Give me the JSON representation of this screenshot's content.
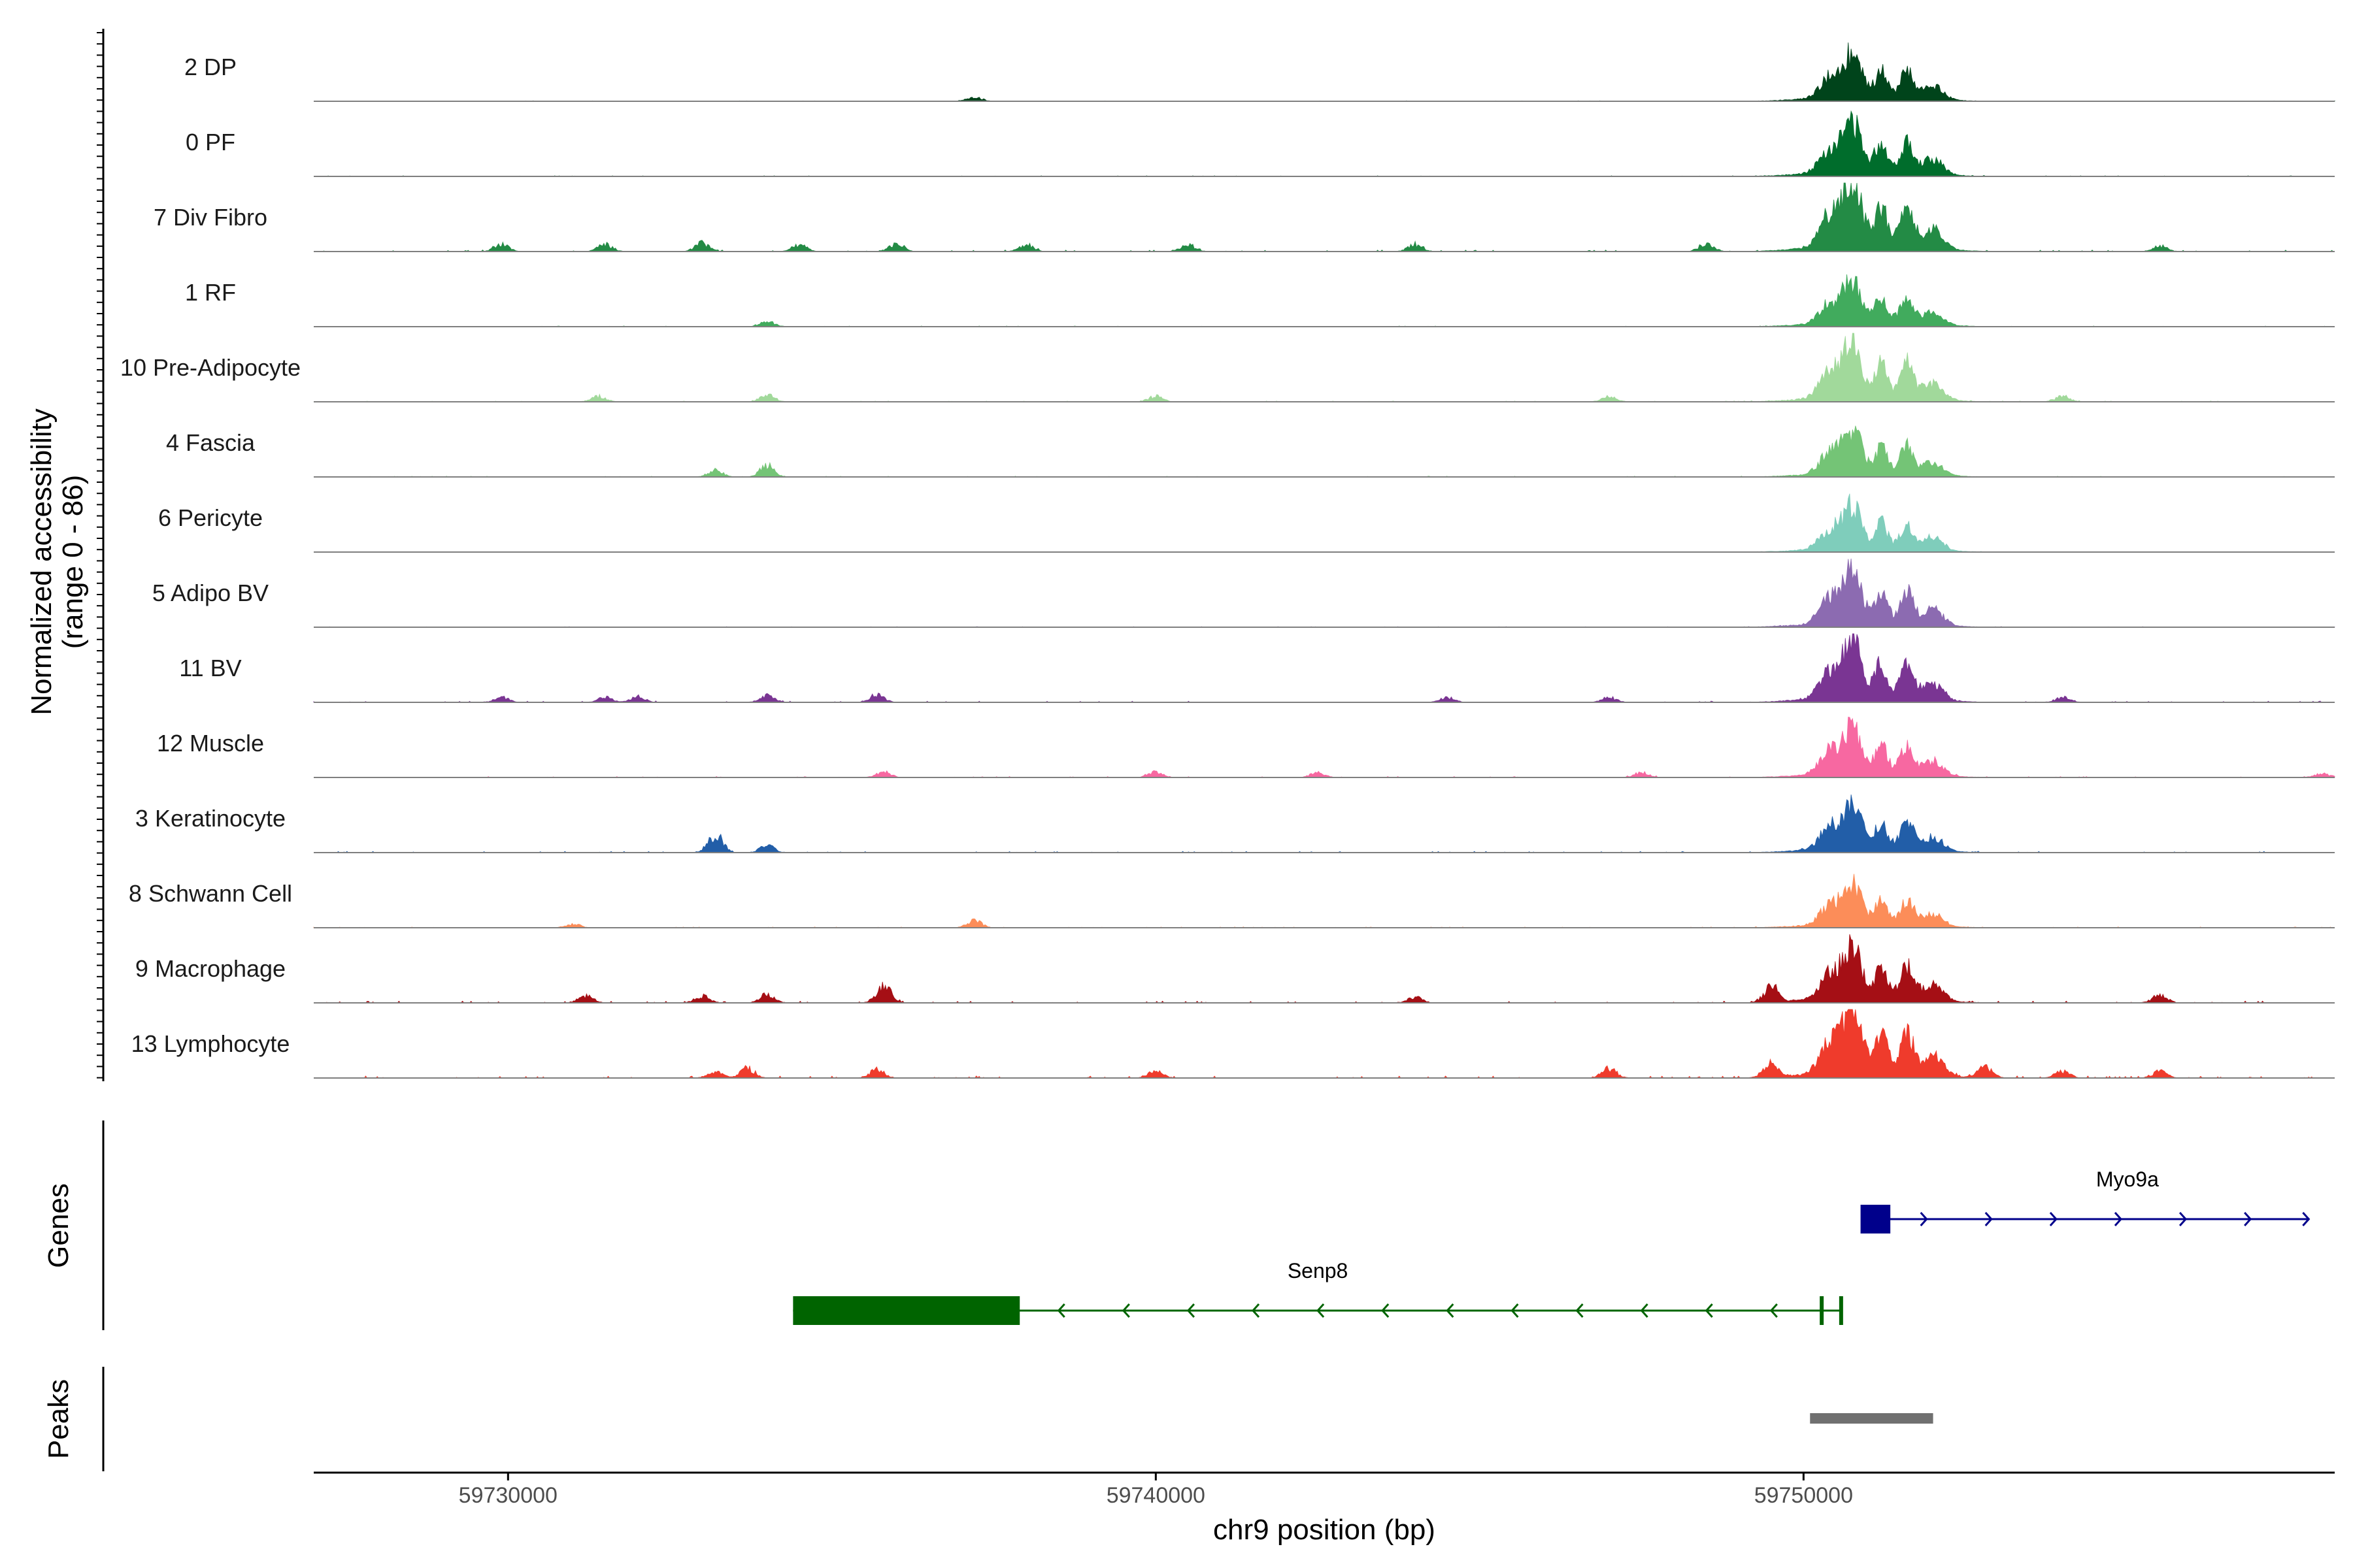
{
  "chart_data": {
    "type": "coverage",
    "xlabel": "chr9 position (bp)",
    "ylabel_line1": "Normalized accessibility",
    "ylabel_line2": "(range 0 - 86)",
    "y_range": [
      0,
      86
    ],
    "xlim": [
      59727000,
      59758200
    ],
    "x_ticks": [
      59730000,
      59740000,
      59750000
    ],
    "x_tick_labels": [
      "59730000",
      "59740000",
      "59750000"
    ],
    "peak_center": 59751000,
    "tracks": [
      {
        "label": "2 DP",
        "color": "#00441b",
        "peak_height": 0.62,
        "bg_level": 0.05,
        "bg_peaks": [
          [
            59737200,
            0.06
          ]
        ],
        "seed": 11
      },
      {
        "label": "0 PF",
        "color": "#006d2c",
        "peak_height": 0.72,
        "bg_level": 0.07,
        "bg_peaks": [],
        "seed": 23
      },
      {
        "label": "7 Div Fibro",
        "color": "#238b45",
        "peak_height": 0.95,
        "bg_level": 0.15,
        "bg_peaks": [
          [
            59729900,
            0.1
          ],
          [
            59731500,
            0.1
          ],
          [
            59733000,
            0.12
          ],
          [
            59734500,
            0.1
          ],
          [
            59736000,
            0.12
          ],
          [
            59738000,
            0.1
          ],
          [
            59740500,
            0.1
          ],
          [
            59744000,
            0.1
          ],
          [
            59748500,
            0.12
          ],
          [
            59755500,
            0.08
          ]
        ],
        "seed": 37
      },
      {
        "label": "1 RF",
        "color": "#41ab5d",
        "peak_height": 0.6,
        "bg_level": 0.07,
        "bg_peaks": [
          [
            59734000,
            0.08
          ]
        ],
        "seed": 41
      },
      {
        "label": "10 Pre-Adipocyte",
        "color": "#a1d99b",
        "peak_height": 0.78,
        "bg_level": 0.08,
        "bg_peaks": [
          [
            59731400,
            0.08
          ],
          [
            59734000,
            0.1
          ],
          [
            59740000,
            0.08
          ],
          [
            59747000,
            0.08
          ],
          [
            59754000,
            0.08
          ]
        ],
        "seed": 53
      },
      {
        "label": "4 Fascia",
        "color": "#74c476",
        "peak_height": 0.62,
        "bg_level": 0.08,
        "bg_peaks": [
          [
            59733200,
            0.1
          ],
          [
            59734000,
            0.16
          ]
        ],
        "seed": 67
      },
      {
        "label": "6 Pericyte",
        "color": "#7fcdbb",
        "peak_height": 0.6,
        "bg_level": 0.04,
        "bg_peaks": [],
        "seed": 71
      },
      {
        "label": "5 Adipo BV",
        "color": "#8c6bb1",
        "peak_height": 0.75,
        "bg_level": 0.06,
        "bg_peaks": [],
        "seed": 79
      },
      {
        "label": "11 BV",
        "color": "#7a3593",
        "peak_height": 0.8,
        "bg_level": 0.12,
        "bg_peaks": [
          [
            59729900,
            0.07
          ],
          [
            59731500,
            0.07
          ],
          [
            59732000,
            0.08
          ],
          [
            59734000,
            0.1
          ],
          [
            59735700,
            0.1
          ],
          [
            59744500,
            0.07
          ],
          [
            59747000,
            0.07
          ],
          [
            59754000,
            0.07
          ]
        ],
        "seed": 83
      },
      {
        "label": "12 Muscle",
        "color": "#f768a1",
        "peak_height": 0.68,
        "bg_level": 0.1,
        "bg_peaks": [
          [
            59735800,
            0.08
          ],
          [
            59740000,
            0.08
          ],
          [
            59742500,
            0.07
          ],
          [
            59747500,
            0.07
          ],
          [
            59758000,
            0.06
          ]
        ],
        "seed": 97
      },
      {
        "label": "3 Keratinocyte",
        "color": "#225ea8",
        "peak_height": 0.65,
        "bg_level": 0.12,
        "bg_peaks": [
          [
            59733200,
            0.26
          ],
          [
            59734000,
            0.1
          ]
        ],
        "seed": 101
      },
      {
        "label": "8 Schwann Cell",
        "color": "#fc8d59",
        "peak_height": 0.58,
        "bg_level": 0.08,
        "bg_peaks": [
          [
            59737200,
            0.1
          ],
          [
            59731000,
            0.05
          ]
        ],
        "seed": 113
      },
      {
        "label": "9 Macrophage",
        "color": "#a50f15",
        "peak_height": 0.75,
        "bg_level": 0.18,
        "bg_peaks": [
          [
            59731200,
            0.1
          ],
          [
            59733000,
            0.1
          ],
          [
            59734000,
            0.12
          ],
          [
            59735800,
            0.25
          ],
          [
            59744000,
            0.08
          ],
          [
            59749500,
            0.22
          ],
          [
            59755500,
            0.12
          ]
        ],
        "seed": 127
      },
      {
        "label": "13 Lymphocyte",
        "color": "#ef3b2c",
        "peak_height": 0.95,
        "bg_level": 0.2,
        "bg_peaks": [
          [
            59733200,
            0.1
          ],
          [
            59733700,
            0.14
          ],
          [
            59735700,
            0.12
          ],
          [
            59740000,
            0.1
          ],
          [
            59747000,
            0.14
          ],
          [
            59749500,
            0.2
          ],
          [
            59752800,
            0.16
          ],
          [
            59754000,
            0.1
          ],
          [
            59755500,
            0.1
          ]
        ],
        "seed": 131
      }
    ],
    "genes_panel_title": "Genes",
    "peaks_panel_title": "Peaks",
    "genes": [
      {
        "name": "Myo9a",
        "color": "#00008b",
        "start": 59751000,
        "end": 59757800,
        "strand": "+",
        "exons": [
          [
            59750880,
            59751340
          ]
        ],
        "arrows": [
          59751900,
          59752900,
          59753900,
          59754900,
          59755900,
          59756900,
          59757800
        ]
      },
      {
        "name": "Senp8",
        "color": "#006400",
        "start": 59734400,
        "end": 59750600,
        "strand": "-",
        "exons": [
          [
            59734400,
            59737900
          ],
          [
            59750250,
            59750300
          ],
          [
            59750550,
            59750610
          ]
        ],
        "arrows": [
          59738500,
          59739500,
          59740500,
          59741500,
          59742500,
          59743500,
          59744500,
          59745500,
          59746500,
          59747500,
          59748500,
          59749500
        ]
      }
    ],
    "peaks": [
      {
        "start": 59750100,
        "end": 59752000,
        "color": "#707070"
      }
    ]
  }
}
